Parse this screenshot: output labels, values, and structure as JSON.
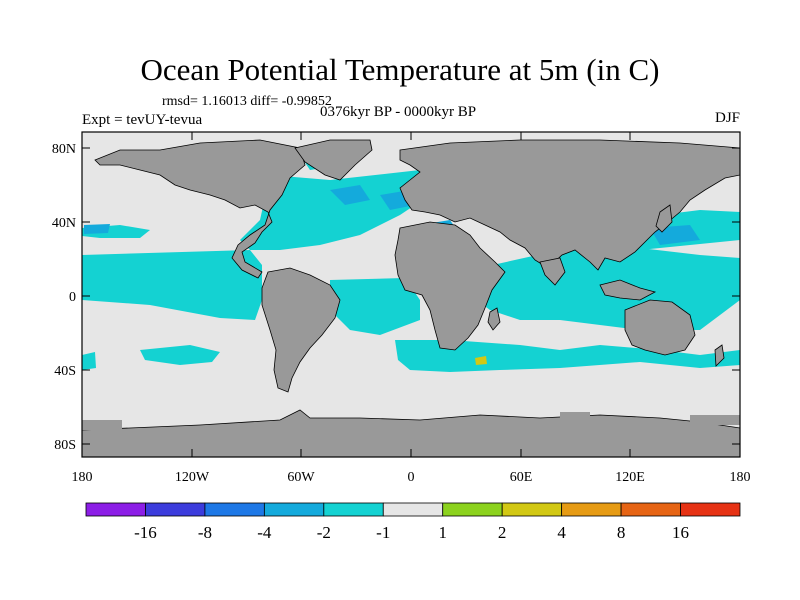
{
  "header": {
    "title": "Ocean Potential Temperature at 5m (in C)",
    "stats": "rmsd= 1.16013 diff= -0.99852",
    "experiment": "Expt = tevUY-tevua",
    "period": "0376kyr BP - 0000kyr BP",
    "season": "DJF"
  },
  "axes": {
    "lat_labels": [
      "80N",
      "40N",
      "0",
      "40S",
      "80S"
    ],
    "lon_labels": [
      "180",
      "120W",
      "60W",
      "0",
      "60E",
      "120E",
      "180"
    ]
  },
  "colorbar": {
    "levels": [
      "-16",
      "-8",
      "-4",
      "-2",
      "-1",
      "1",
      "2",
      "4",
      "8",
      "16"
    ],
    "colors": [
      "#8c1ee6",
      "#3c3cdc",
      "#1e78e6",
      "#14aadc",
      "#14d2d2",
      "#e6e6e6",
      "#8cd21e",
      "#d2c814",
      "#e69b14",
      "#e66414",
      "#e63214"
    ]
  },
  "map_colors": {
    "land": "#999999",
    "ocean_neutral": "#e6e6e6",
    "cool_1": "#14d2d2",
    "cool_2": "#14aadc",
    "cool_3": "#1e78e6",
    "warm_1": "#d2c814"
  }
}
